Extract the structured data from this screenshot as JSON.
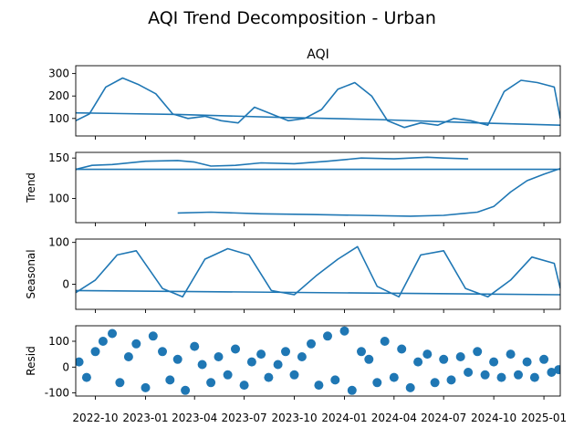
{
  "chart_data": {
    "type": "line",
    "title": "AQI Trend Decomposition - Urban",
    "line_color": "#1f77b4",
    "x_tick_labels": [
      "2022-10",
      "2023-01",
      "2023-04",
      "2023-07",
      "2023-10",
      "2024-01",
      "2024-04",
      "2024-07",
      "2024-10",
      "2025-01"
    ],
    "x_tick_dates": [
      "2022-10-01",
      "2023-01-01",
      "2023-04-01",
      "2023-07-01",
      "2023-10-01",
      "2024-01-01",
      "2024-04-01",
      "2024-07-01",
      "2024-10-01",
      "2025-01-01"
    ],
    "x_range": [
      "2022-08-26",
      "2025-01-31"
    ],
    "panels": [
      {
        "id": "aqi",
        "kind": "line",
        "panel_title": "AQI",
        "ylabel": "",
        "ylim": [
          22,
          335
        ],
        "y_ticks": [
          100,
          200,
          300
        ],
        "series": [
          {
            "x": [
              "2022-08-26",
              "2022-09-20",
              "2022-10-20",
              "2022-11-20",
              "2022-12-20",
              "2023-01-20",
              "2023-02-20",
              "2023-03-20",
              "2023-04-20",
              "2023-05-20",
              "2023-06-20",
              "2023-07-20",
              "2023-08-20",
              "2023-09-20",
              "2023-10-20",
              "2023-11-20",
              "2023-12-20",
              "2024-01-20",
              "2024-02-20",
              "2024-03-20",
              "2024-04-20",
              "2024-05-20",
              "2024-06-20",
              "2024-07-20",
              "2024-08-20",
              "2024-09-20",
              "2024-10-20",
              "2024-11-20",
              "2024-12-20",
              "2025-01-20",
              "2025-01-31"
            ],
            "y": [
              90,
              120,
              240,
              280,
              250,
              210,
              120,
              100,
              110,
              90,
              80,
              150,
              120,
              90,
              100,
              140,
              230,
              260,
              200,
              90,
              60,
              80,
              70,
              100,
              90,
              70,
              220,
              270,
              260,
              240,
              100
            ]
          },
          {
            "x": [
              "2022-08-26",
              "2023-03-01",
              "2023-09-01",
              "2024-03-01",
              "2024-09-01",
              "2025-01-31"
            ],
            "y": [
              125,
              118,
              105,
              95,
              80,
              70
            ]
          }
        ]
      },
      {
        "id": "trend",
        "kind": "line",
        "panel_title": "",
        "ylabel": "Trend",
        "ylim": [
          70,
          157
        ],
        "y_ticks": [
          100,
          150
        ],
        "series": [
          {
            "x": [
              "2022-08-26",
              "2022-09-25",
              "2022-11-01",
              "2023-01-01",
              "2023-03-01",
              "2023-04-01",
              "2023-05-01",
              "2023-06-15",
              "2023-08-01",
              "2023-10-01",
              "2023-12-01",
              "2024-02-01",
              "2024-04-01",
              "2024-06-01",
              "2024-07-01",
              "2024-08-15"
            ],
            "y": [
              136,
              141,
              142,
              146,
              147,
              145,
              140,
              141,
              144,
              143,
              146,
              150,
              149,
              151,
              150,
              149
            ]
          },
          {
            "x": [
              "2022-08-26",
              "2025-01-31"
            ],
            "y": [
              136,
              136
            ]
          },
          {
            "x": [
              "2023-03-01",
              "2023-05-01",
              "2023-08-01",
              "2023-11-01",
              "2024-02-01",
              "2024-05-01",
              "2024-07-01",
              "2024-09-01",
              "2024-10-01",
              "2024-11-01",
              "2024-12-01",
              "2025-01-01",
              "2025-01-31"
            ],
            "y": [
              82,
              83,
              81,
              80,
              79,
              78,
              79,
              83,
              90,
              108,
              122,
              130,
              137
            ]
          }
        ]
      },
      {
        "id": "seasonal",
        "kind": "line",
        "panel_title": "",
        "ylabel": "Seasonal",
        "ylim": [
          -60,
          108
        ],
        "y_ticks": [
          0,
          100
        ],
        "series": [
          {
            "x": [
              "2022-08-26",
              "2022-10-01",
              "2022-11-10",
              "2022-12-15",
              "2023-02-01",
              "2023-03-10",
              "2023-04-20",
              "2023-06-01",
              "2023-07-10",
              "2023-08-20",
              "2023-10-01",
              "2023-11-10",
              "2023-12-20",
              "2024-01-25",
              "2024-03-01",
              "2024-04-10",
              "2024-05-20",
              "2024-07-01",
              "2024-08-10",
              "2024-09-20",
              "2024-11-01",
              "2024-12-10",
              "2025-01-20",
              "2025-01-31"
            ],
            "y": [
              -20,
              10,
              70,
              80,
              -10,
              -30,
              60,
              85,
              70,
              -15,
              -25,
              20,
              60,
              90,
              -5,
              -30,
              70,
              80,
              -10,
              -30,
              10,
              65,
              50,
              -10
            ]
          },
          {
            "x": [
              "2022-08-26",
              "2025-01-31"
            ],
            "y": [
              -15,
              -25
            ]
          }
        ]
      },
      {
        "id": "resid",
        "kind": "scatter",
        "panel_title": "",
        "ylabel": "Resid",
        "ylim": [
          -112,
          160
        ],
        "y_ticks": [
          -100,
          0,
          100
        ],
        "points_x": [
          "2022-09-01",
          "2022-09-15",
          "2022-10-01",
          "2022-10-15",
          "2022-11-01",
          "2022-11-15",
          "2022-12-01",
          "2022-12-15",
          "2023-01-01",
          "2023-01-15",
          "2023-02-01",
          "2023-02-15",
          "2023-03-01",
          "2023-03-15",
          "2023-04-01",
          "2023-04-15",
          "2023-05-01",
          "2023-05-15",
          "2023-06-01",
          "2023-06-15",
          "2023-07-01",
          "2023-07-15",
          "2023-08-01",
          "2023-08-15",
          "2023-09-01",
          "2023-09-15",
          "2023-10-01",
          "2023-10-15",
          "2023-11-01",
          "2023-11-15",
          "2023-12-01",
          "2023-12-15",
          "2024-01-01",
          "2024-01-15",
          "2024-02-01",
          "2024-02-15",
          "2024-03-01",
          "2024-03-15",
          "2024-04-01",
          "2024-04-15",
          "2024-05-01",
          "2024-05-15",
          "2024-06-01",
          "2024-06-15",
          "2024-07-01",
          "2024-07-15",
          "2024-08-01",
          "2024-08-15",
          "2024-09-01",
          "2024-09-15",
          "2024-10-01",
          "2024-10-15",
          "2024-11-01",
          "2024-11-15",
          "2024-12-01",
          "2024-12-15",
          "2025-01-01",
          "2025-01-15",
          "2025-01-28"
        ],
        "points_y": [
          20,
          -40,
          60,
          100,
          130,
          -60,
          40,
          90,
          -80,
          120,
          60,
          -50,
          30,
          -90,
          80,
          10,
          -60,
          40,
          -30,
          70,
          -70,
          20,
          50,
          -40,
          10,
          60,
          -30,
          40,
          90,
          -70,
          120,
          -50,
          140,
          -90,
          60,
          30,
          -60,
          100,
          -40,
          70,
          -80,
          20,
          50,
          -60,
          30,
          -50,
          40,
          -20,
          60,
          -30,
          20,
          -40,
          50,
          -30,
          20,
          -40,
          30,
          -20,
          -10
        ]
      }
    ]
  }
}
